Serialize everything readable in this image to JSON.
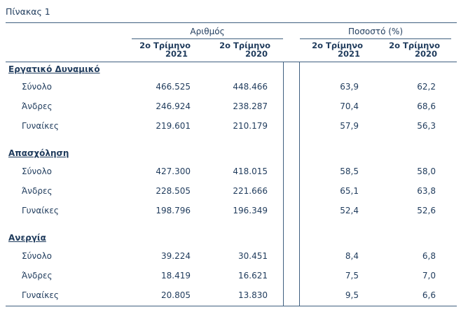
{
  "caption": "Πίνακας 1",
  "group_headers": {
    "count": "Αριθμός",
    "percent": "Ποσοστό (%)"
  },
  "col_headers": [
    {
      "line1": "2ο Τρίμηνο",
      "line2": "2021"
    },
    {
      "line1": "2ο Τρίμηνο",
      "line2": "2020"
    },
    {
      "line1": "2ο Τρίμηνο",
      "line2": "2021"
    },
    {
      "line1": "2ο Τρίμηνο",
      "line2": "2020"
    }
  ],
  "sections": [
    {
      "title": "Εργατικό Δυναμικό",
      "rows": [
        {
          "label": "Σύνολο",
          "values": [
            "466.525",
            "448.466",
            "63,9",
            "62,2"
          ]
        },
        {
          "label": "Άνδρες",
          "values": [
            "246.924",
            "238.287",
            "70,4",
            "68,6"
          ]
        },
        {
          "label": "Γυναίκες",
          "values": [
            "219.601",
            "210.179",
            "57,9",
            "56,3"
          ]
        }
      ]
    },
    {
      "title": "Απασχόληση",
      "rows": [
        {
          "label": "Σύνολο",
          "values": [
            "427.300",
            "418.015",
            "58,5",
            "58,0"
          ]
        },
        {
          "label": "Άνδρες",
          "values": [
            "228.505",
            "221.666",
            "65,1",
            "63,8"
          ]
        },
        {
          "label": "Γυναίκες",
          "values": [
            "198.796",
            "196.349",
            "52,4",
            "52,6"
          ]
        }
      ]
    },
    {
      "title": "Ανεργία",
      "rows": [
        {
          "label": "Σύνολο",
          "values": [
            "39.224",
            "30.451",
            "8,4",
            "6,8"
          ]
        },
        {
          "label": "Άνδρες",
          "values": [
            "18.419",
            "16.621",
            "7,5",
            "7,0"
          ]
        },
        {
          "label": "Γυναίκες",
          "values": [
            "20.805",
            "13.830",
            "9,5",
            "6,6"
          ]
        }
      ]
    }
  ]
}
